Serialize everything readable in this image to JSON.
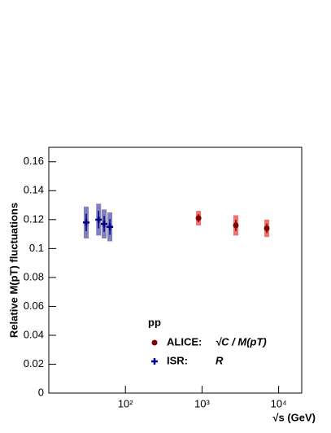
{
  "chart_data": {
    "type": "scatter",
    "xlabel": "√s  (GeV)",
    "ylabel": "Relative M(pT) fluctuations",
    "xscale": "log",
    "xlim": [
      10,
      20000
    ],
    "ylim": [
      0,
      0.17
    ],
    "xticks": [
      {
        "value": 100,
        "label": "10²"
      },
      {
        "value": 1000,
        "label": "10³"
      },
      {
        "value": 10000,
        "label": "10⁴"
      }
    ],
    "yticks": [
      0,
      0.02,
      0.04,
      0.06,
      0.08,
      0.1,
      0.12,
      0.14,
      0.16
    ],
    "legend_title": "pp",
    "series": [
      {
        "name": "ALICE:",
        "formula": "√C  /  M(pT)",
        "color": "#800000",
        "error_color": "#f07070",
        "marker": "circle",
        "x": [
          900,
          2760,
          7000
        ],
        "values": [
          0.121,
          0.116,
          0.114
        ],
        "errors": [
          0.005,
          0.007,
          0.006
        ]
      },
      {
        "name": "ISR:",
        "formula": "R",
        "color": "#000080",
        "error_color": "#8080c0",
        "marker": "cross",
        "x": [
          30.8,
          44.7,
          52.8,
          62.7
        ],
        "values": [
          0.118,
          0.12,
          0.117,
          0.115
        ],
        "errors": [
          0.011,
          0.011,
          0.01,
          0.01
        ]
      }
    ]
  }
}
